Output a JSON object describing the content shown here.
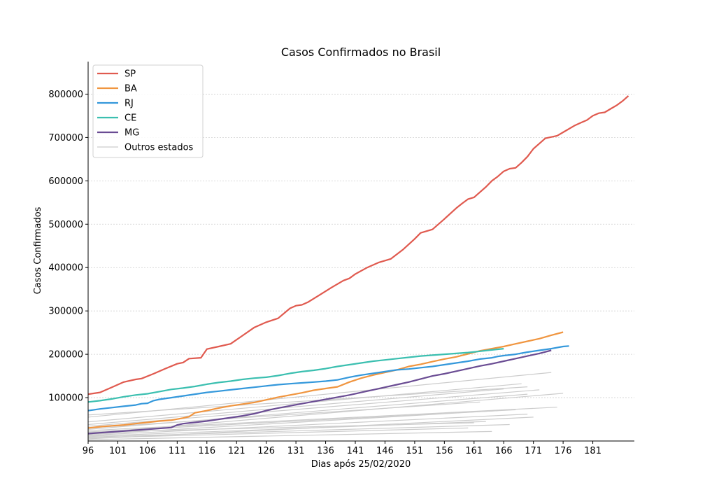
{
  "chart_data": {
    "type": "line",
    "title": "Casos Confirmados no Brasil",
    "xlabel": "Dias após 25/02/2020",
    "ylabel": "Casos Confirmados",
    "xlim": [
      96,
      188
    ],
    "ylim": [
      0,
      875000
    ],
    "xticks": [
      96,
      101,
      106,
      111,
      116,
      121,
      126,
      131,
      136,
      141,
      146,
      151,
      156,
      161,
      166,
      171,
      176,
      181
    ],
    "yticks": [
      100000,
      200000,
      300000,
      400000,
      500000,
      600000,
      700000,
      800000
    ],
    "grid": "horizontal",
    "legend_position": "top-left",
    "series": [
      {
        "name": "SP",
        "color": "#e05a4f",
        "x": [
          96,
          98,
          100,
          102,
          104,
          105,
          107,
          109,
          111,
          112,
          113,
          115,
          116,
          118,
          120,
          122,
          124,
          126,
          128,
          130,
          131,
          132,
          133,
          135,
          137,
          139,
          140,
          141,
          143,
          145,
          146,
          147,
          149,
          151,
          152,
          154,
          156,
          158,
          159,
          160,
          161,
          162,
          163,
          164,
          165,
          166,
          167,
          168,
          169,
          170,
          171,
          172,
          173,
          175,
          176,
          178,
          179,
          180,
          181,
          182,
          183,
          184,
          185,
          186,
          187
        ],
        "y": [
          108000,
          112000,
          124000,
          136000,
          142000,
          144000,
          155000,
          167000,
          178000,
          181000,
          190000,
          192000,
          212000,
          218000,
          224000,
          243000,
          262000,
          274000,
          283000,
          306000,
          312000,
          314000,
          320000,
          337000,
          354000,
          370000,
          375000,
          385000,
          400000,
          412000,
          416000,
          420000,
          441000,
          466000,
          480000,
          488000,
          512000,
          537000,
          548000,
          558000,
          562000,
          574000,
          586000,
          600000,
          610000,
          622000,
          628000,
          630000,
          642000,
          656000,
          674000,
          686000,
          698000,
          704000,
          712000,
          728000,
          734000,
          740000,
          750000,
          756000,
          758000,
          766000,
          774000,
          784000,
          796000
        ]
      },
      {
        "name": "BA",
        "color": "#f0953f",
        "x": [
          96,
          98,
          100,
          102,
          104,
          106,
          108,
          110,
          112,
          113,
          114,
          116,
          118,
          120,
          122,
          124,
          126,
          128,
          130,
          132,
          134,
          136,
          138,
          140,
          142,
          144,
          146,
          148,
          150,
          152,
          154,
          156,
          158,
          160,
          162,
          164,
          166,
          168,
          170,
          172,
          174,
          176
        ],
        "y": [
          30000,
          33000,
          35000,
          37000,
          40000,
          43000,
          46000,
          48000,
          53000,
          56000,
          65000,
          70000,
          76000,
          81000,
          85000,
          89000,
          95000,
          101000,
          106000,
          111000,
          117000,
          121000,
          125000,
          136000,
          145000,
          152000,
          158000,
          164000,
          172000,
          177000,
          183000,
          189000,
          194000,
          201000,
          208000,
          213000,
          218000,
          224000,
          230000,
          236000,
          244000,
          251000
        ]
      },
      {
        "name": "RJ",
        "color": "#3498db",
        "x": [
          96,
          98,
          100,
          102,
          104,
          105,
          106,
          107,
          108,
          110,
          112,
          114,
          116,
          118,
          120,
          122,
          124,
          126,
          128,
          130,
          132,
          134,
          136,
          138,
          140,
          142,
          144,
          146,
          148,
          150,
          152,
          154,
          156,
          158,
          160,
          162,
          164,
          165,
          166,
          168,
          170,
          172,
          174,
          176,
          177
        ],
        "y": [
          70000,
          74000,
          77000,
          80000,
          83000,
          86000,
          87000,
          93000,
          96000,
          100000,
          104000,
          108000,
          112000,
          115000,
          118000,
          121000,
          124000,
          127000,
          130000,
          132000,
          134000,
          136000,
          138000,
          141000,
          147000,
          152000,
          156000,
          160000,
          164000,
          166000,
          169000,
          172000,
          176000,
          180000,
          184000,
          189000,
          192000,
          195000,
          197000,
          200000,
          205000,
          209000,
          213000,
          218000,
          219000
        ]
      },
      {
        "name": "CE",
        "color": "#3bbfb0",
        "x": [
          96,
          98,
          100,
          102,
          104,
          106,
          108,
          110,
          112,
          114,
          116,
          118,
          120,
          122,
          124,
          126,
          128,
          130,
          132,
          134,
          136,
          138,
          140,
          142,
          144,
          146,
          148,
          150,
          152,
          154,
          156,
          158,
          160,
          162,
          164,
          166
        ],
        "y": [
          90000,
          93000,
          97000,
          102000,
          106000,
          109000,
          114000,
          119000,
          122000,
          126000,
          131000,
          135000,
          138000,
          142000,
          145000,
          147000,
          151000,
          156000,
          160000,
          163000,
          167000,
          172000,
          176000,
          180000,
          184000,
          187000,
          190000,
          193000,
          196000,
          198000,
          200000,
          202000,
          204000,
          207000,
          210000,
          213000
        ]
      },
      {
        "name": "MG",
        "color": "#6a4c93",
        "x": [
          96,
          98,
          100,
          102,
          104,
          106,
          108,
          110,
          111,
          112,
          114,
          116,
          118,
          120,
          122,
          124,
          126,
          128,
          130,
          132,
          134,
          136,
          138,
          140,
          142,
          144,
          146,
          148,
          150,
          152,
          154,
          156,
          158,
          160,
          162,
          164,
          166,
          168,
          170,
          172,
          174
        ],
        "y": [
          17000,
          19000,
          21000,
          23000,
          25000,
          27000,
          29000,
          31000,
          37000,
          40000,
          43000,
          46000,
          50000,
          54000,
          58000,
          63000,
          70000,
          76000,
          81000,
          86000,
          91000,
          96000,
          101000,
          106000,
          112000,
          118000,
          124000,
          130000,
          136000,
          143000,
          150000,
          155000,
          161000,
          167000,
          173000,
          178000,
          184000,
          190000,
          196000,
          202000,
          209000
        ]
      },
      {
        "name": "Outros estados",
        "color": "#cccccc",
        "x": [
          96,
          170
        ],
        "y": [
          60000,
          125000
        ]
      }
    ],
    "other_series": [
      {
        "x": [
          96,
          174
        ],
        "y": [
          55000,
          158000
        ]
      },
      {
        "x": [
          96,
          169
        ],
        "y": [
          44000,
          132000
        ]
      },
      {
        "x": [
          96,
          166
        ],
        "y": [
          38000,
          120000
        ]
      },
      {
        "x": [
          96,
          172
        ],
        "y": [
          34000,
          118000
        ]
      },
      {
        "x": [
          96,
          162
        ],
        "y": [
          30000,
          90000
        ]
      },
      {
        "x": [
          96,
          170
        ],
        "y": [
          27000,
          108000
        ]
      },
      {
        "x": [
          96,
          175
        ],
        "y": [
          24000,
          78000
        ]
      },
      {
        "x": [
          96,
          168
        ],
        "y": [
          21000,
          72000
        ]
      },
      {
        "x": [
          96,
          176
        ],
        "y": [
          18000,
          110000
        ]
      },
      {
        "x": [
          96,
          165
        ],
        "y": [
          15000,
          70000
        ]
      },
      {
        "x": [
          96,
          170
        ],
        "y": [
          13000,
          62000
        ]
      },
      {
        "x": [
          96,
          163
        ],
        "y": [
          11000,
          45000
        ]
      },
      {
        "x": [
          96,
          167
        ],
        "y": [
          9000,
          38000
        ]
      },
      {
        "x": [
          96,
          160
        ],
        "y": [
          7000,
          30000
        ]
      },
      {
        "x": [
          96,
          171
        ],
        "y": [
          5000,
          55000
        ]
      },
      {
        "x": [
          96,
          164
        ],
        "y": [
          3000,
          22000
        ]
      },
      {
        "x": [
          96,
          161
        ],
        "y": [
          20000,
          42000
        ]
      }
    ]
  }
}
